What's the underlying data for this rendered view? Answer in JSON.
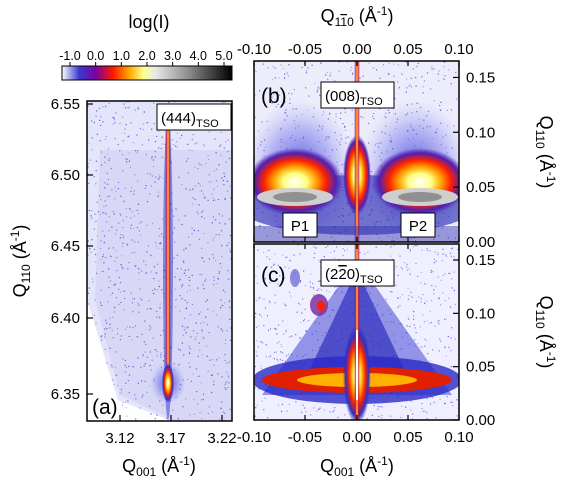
{
  "colorbar": {
    "title": "log(I)",
    "ticks": [
      "-1.0",
      "0.0",
      "1.0",
      "2.0",
      "3.0",
      "4.0",
      "5.0"
    ],
    "colors": [
      "#1a1aa6",
      "#ff0000",
      "#ffc800",
      "#ffffe0",
      "#b0b0b0",
      "#606060",
      "#000000"
    ]
  },
  "panel_a": {
    "letter": "(a)",
    "box_label": "(444)",
    "box_label_sub": "TSO",
    "x_label": "Q",
    "x_label_sub": "001",
    "x_unit": " (Å",
    "x_unit_sup": "-1",
    "x_unit_end": ")",
    "y_label": "Q",
    "y_label_sub": "110",
    "y_unit": " (Å",
    "y_unit_sup": "-1",
    "y_unit_end": ")",
    "x_ticks": [
      "3.12",
      "3.17",
      "3.22"
    ],
    "y_ticks": [
      "6.55",
      "6.50",
      "6.45",
      "6.40",
      "6.35"
    ]
  },
  "panel_b": {
    "letter": "(b)",
    "box_label": "(008)",
    "box_label_sub": "TSO",
    "peak_labels": [
      "P1",
      "P2"
    ],
    "top_axis_label": "Q",
    "top_axis_label_sub": "1",
    "top_axis_label_sub_over": "1",
    "top_axis_label_sub_end": "0",
    "top_axis_unit": " (Å",
    "top_axis_unit_sup": "-1",
    "top_axis_unit_end": ")",
    "x_ticks": [
      "-0.10",
      "-0.05",
      "0.00",
      "0.05",
      "0.10"
    ],
    "y_ticks": [
      "0.15",
      "0.10",
      "0.05",
      "0.00"
    ],
    "y_label": "Q",
    "y_label_sub": "110",
    "y_unit": " (Å",
    "y_unit_sup": "-1",
    "y_unit_end": ")"
  },
  "panel_c": {
    "letter": "(c)",
    "box_label_pre": "(2",
    "box_label_over": "2",
    "box_label_post": "0)",
    "box_label_sub": "TSO",
    "x_ticks": [
      "-0.10",
      "-0.05",
      "0.00",
      "0.05",
      "0.10"
    ],
    "y_ticks": [
      "0.15",
      "0.10",
      "0.05",
      "0.00"
    ],
    "x_label": "Q",
    "x_label_sub": "001",
    "x_unit": " (Å",
    "x_unit_sup": "-1",
    "x_unit_end": ")",
    "y_label": "Q",
    "y_label_sub": "110",
    "y_unit": " (Å",
    "y_unit_sup": "-1",
    "y_unit_end": ")"
  }
}
